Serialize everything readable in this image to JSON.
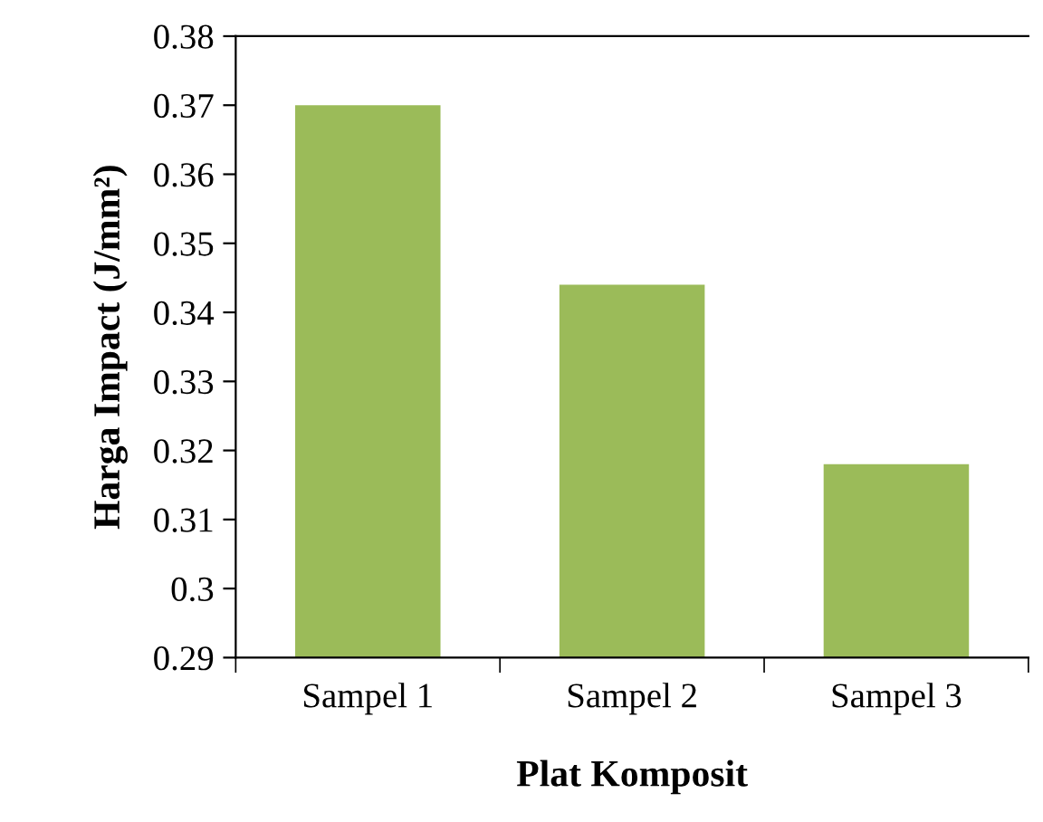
{
  "chart_data": {
    "type": "bar",
    "categories": [
      "Sampel 1",
      "Sampel 2",
      "Sampel 3"
    ],
    "values": [
      0.37,
      0.344,
      0.318
    ],
    "color": "#9bbb59",
    "xlabel": "Plat Komposit",
    "ylabel": "Harga Impact (J/mm²)",
    "ylim": [
      0.29,
      0.38
    ],
    "yticks": [
      0.29,
      0.3,
      0.31,
      0.32,
      0.33,
      0.34,
      0.35,
      0.36,
      0.37,
      0.38
    ],
    "grid": false
  }
}
